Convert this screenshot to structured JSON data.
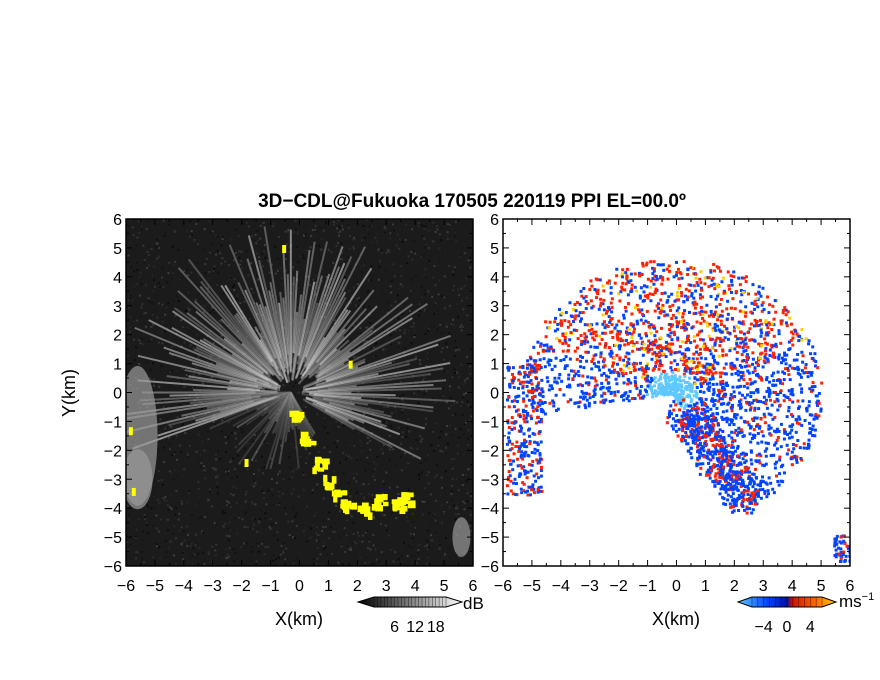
{
  "title": "3D−CDL@Fukuoka 170505 220119 PPI EL=00.0º",
  "chart_data": [
    {
      "type": "heatmap",
      "panel": "reflectivity",
      "xlabel": "X(km)",
      "ylabel": "Y(km)",
      "xlim": [
        -6,
        6
      ],
      "ylim": [
        -6,
        6
      ],
      "x_ticks": [
        "−6",
        "−5",
        "−4",
        "−3",
        "−2",
        "−1",
        "0",
        "1",
        "2",
        "3",
        "4",
        "5",
        "6"
      ],
      "y_ticks": [
        "6",
        "5",
        "4",
        "3",
        "2",
        "1",
        "0",
        "−1",
        "−2",
        "−3",
        "−4",
        "−5",
        "−6"
      ],
      "colorbar": {
        "unit": "dB",
        "ticks": [
          "6",
          "12",
          "18"
        ],
        "range": [
          0,
          21
        ],
        "colors": [
          "#000000",
          "#ffffff"
        ]
      },
      "highlight_color": "#ffff00",
      "background_color": "#1a1a1a"
    },
    {
      "type": "heatmap",
      "panel": "doppler_velocity",
      "xlabel": "X(km)",
      "xlim": [
        -6,
        6
      ],
      "ylim": [
        -6,
        6
      ],
      "x_ticks": [
        "−6",
        "−5",
        "−4",
        "−3",
        "−2",
        "−1",
        "0",
        "1",
        "2",
        "3",
        "4",
        "5",
        "6"
      ],
      "y_ticks": [
        "6",
        "5",
        "4",
        "3",
        "2",
        "1",
        "0",
        "−1",
        "−2",
        "−3",
        "−4",
        "−5",
        "−6"
      ],
      "colorbar": {
        "unit": "ms",
        "unit_exponent": "−1",
        "ticks": [
          "−4",
          "0",
          "4"
        ],
        "range": [
          -6,
          6
        ],
        "colors": [
          "#5ec8ff",
          "#0044ff",
          "#ff2200",
          "#ffd000"
        ]
      },
      "background_color": "#ffffff"
    }
  ]
}
